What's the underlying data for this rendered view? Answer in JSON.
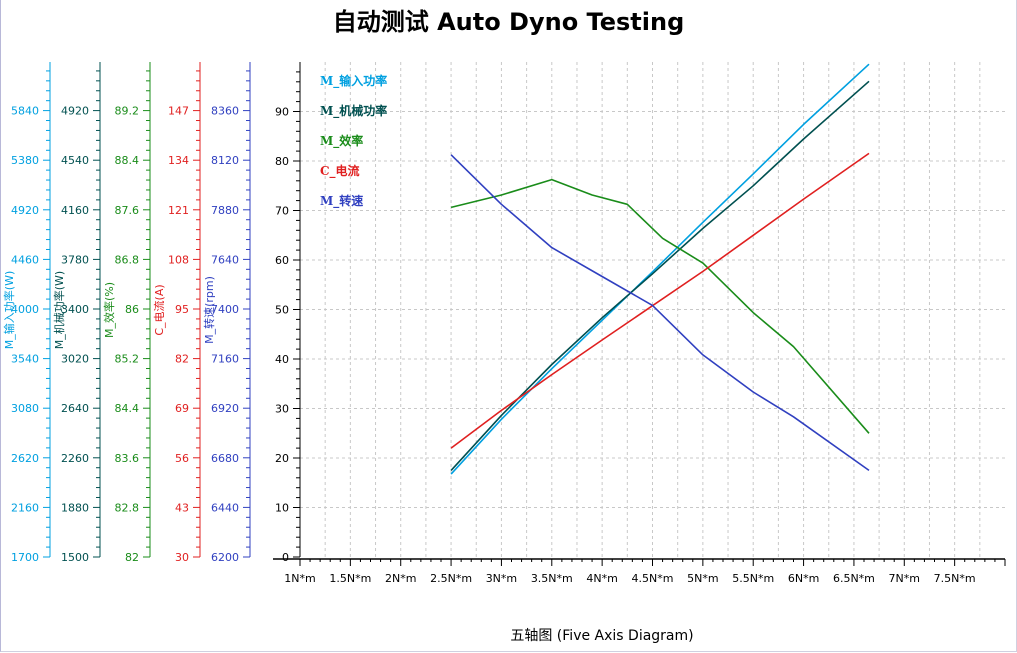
{
  "title": "自动测试 Auto Dyno Testing",
  "footer": "五轴图 (Five Axis Diagram)",
  "chart_data": {
    "type": "line",
    "title": "自动测试 Auto Dyno Testing",
    "xlabel": "五轴图 (Five Axis Diagram)",
    "x_unit": "N*m",
    "xlim": [
      1.0,
      8.0
    ],
    "x_ticks": [
      "1N*m",
      "1.5N*m",
      "2N*m",
      "2.5N*m",
      "3N*m",
      "3.5N*m",
      "4N*m",
      "4.5N*m",
      "5N*m",
      "5.5N*m",
      "6N*m",
      "6.5N*m",
      "7N*m",
      "7.5N*m"
    ],
    "grid": true,
    "legend_position": "top-left",
    "main_y_axis": {
      "range": [
        0,
        100
      ],
      "ticks": [
        "0",
        "10",
        "20",
        "30",
        "40",
        "50",
        "60",
        "70",
        "80",
        "90"
      ],
      "color": "#000000"
    },
    "y_axes": [
      {
        "label": "M_输入功率(W)",
        "color": "#00a0e0",
        "range": [
          1700,
          6300
        ],
        "ticks": [
          "1700",
          "2160",
          "2620",
          "3080",
          "3540",
          "4000",
          "4460",
          "4920",
          "5380",
          "5840"
        ]
      },
      {
        "label": "M_机械功率(W)",
        "color": "#005050",
        "range": [
          1500,
          5100
        ],
        "ticks": [
          "1500",
          "1880",
          "2260",
          "2640",
          "3020",
          "3400",
          "3780",
          "4160",
          "4540",
          "4920"
        ]
      },
      {
        "label": "M_效率(%)",
        "color": "#1a8c1a",
        "range": [
          82,
          90
        ],
        "ticks": [
          "82",
          "82.8",
          "83.6",
          "84.4",
          "85.2",
          "86",
          "86.8",
          "87.6",
          "88.4",
          "89.2"
        ]
      },
      {
        "label": "C_电流(A)",
        "color": "#e02020",
        "range": [
          30,
          160
        ],
        "ticks": [
          "30",
          "43",
          "56",
          "69",
          "82",
          "95",
          "108",
          "121",
          "134",
          "147"
        ]
      },
      {
        "label": "M_转速(rpm)",
        "color": "#3040c0",
        "range": [
          6200,
          8600
        ],
        "ticks": [
          "6200",
          "6440",
          "6680",
          "6920",
          "7160",
          "7400",
          "7640",
          "7880",
          "8120",
          "8360"
        ]
      }
    ],
    "series": [
      {
        "name": "M_输入功率",
        "color": "#00a0e0",
        "axis": 0,
        "points": [
          [
            2.5,
            2470
          ],
          [
            3.0,
            2980
          ],
          [
            3.5,
            3450
          ],
          [
            4.0,
            3900
          ],
          [
            4.5,
            4350
          ],
          [
            5.0,
            4810
          ],
          [
            5.5,
            5260
          ],
          [
            6.0,
            5720
          ],
          [
            6.65,
            6280
          ]
        ]
      },
      {
        "name": "M_机械功率",
        "color": "#005050",
        "axis": 1,
        "points": [
          [
            2.5,
            2130
          ],
          [
            3.0,
            2530
          ],
          [
            3.5,
            2900
          ],
          [
            4.0,
            3240
          ],
          [
            4.5,
            3560
          ],
          [
            5.0,
            3890
          ],
          [
            5.5,
            4200
          ],
          [
            6.0,
            4540
          ],
          [
            6.65,
            4960
          ]
        ]
      },
      {
        "name": "M_效率",
        "color": "#1a8c1a",
        "axis": 2,
        "points": [
          [
            2.5,
            87.65
          ],
          [
            3.0,
            87.85
          ],
          [
            3.5,
            88.1
          ],
          [
            3.9,
            87.85
          ],
          [
            4.25,
            87.7
          ],
          [
            4.6,
            87.15
          ],
          [
            5.0,
            86.75
          ],
          [
            5.5,
            85.95
          ],
          [
            5.9,
            85.4
          ],
          [
            6.65,
            84.0
          ]
        ]
      },
      {
        "name": "C_电流",
        "color": "#e02020",
        "axis": 3,
        "points": [
          [
            2.5,
            58.6
          ],
          [
            3.0,
            68.5
          ],
          [
            3.5,
            77.9
          ],
          [
            4.0,
            87.0
          ],
          [
            4.5,
            96.0
          ],
          [
            5.0,
            105.0
          ],
          [
            5.5,
            114.5
          ],
          [
            6.0,
            124.0
          ],
          [
            6.65,
            136.0
          ]
        ]
      },
      {
        "name": "M_转速",
        "color": "#3040c0",
        "axis": 4,
        "points": [
          [
            2.5,
            8150
          ],
          [
            3.0,
            7910
          ],
          [
            3.5,
            7700
          ],
          [
            4.0,
            7560
          ],
          [
            4.5,
            7420
          ],
          [
            5.0,
            7180
          ],
          [
            5.5,
            7000
          ],
          [
            5.9,
            6880
          ],
          [
            6.65,
            6620
          ]
        ]
      }
    ],
    "legend": [
      {
        "label": "M_输入功率",
        "color": "#00a0e0"
      },
      {
        "label": "M_机械功率",
        "color": "#005050"
      },
      {
        "label": "M_效率",
        "color": "#1a8c1a"
      },
      {
        "label": "C_电流",
        "color": "#e02020"
      },
      {
        "label": "M_转速",
        "color": "#3040c0"
      }
    ]
  }
}
